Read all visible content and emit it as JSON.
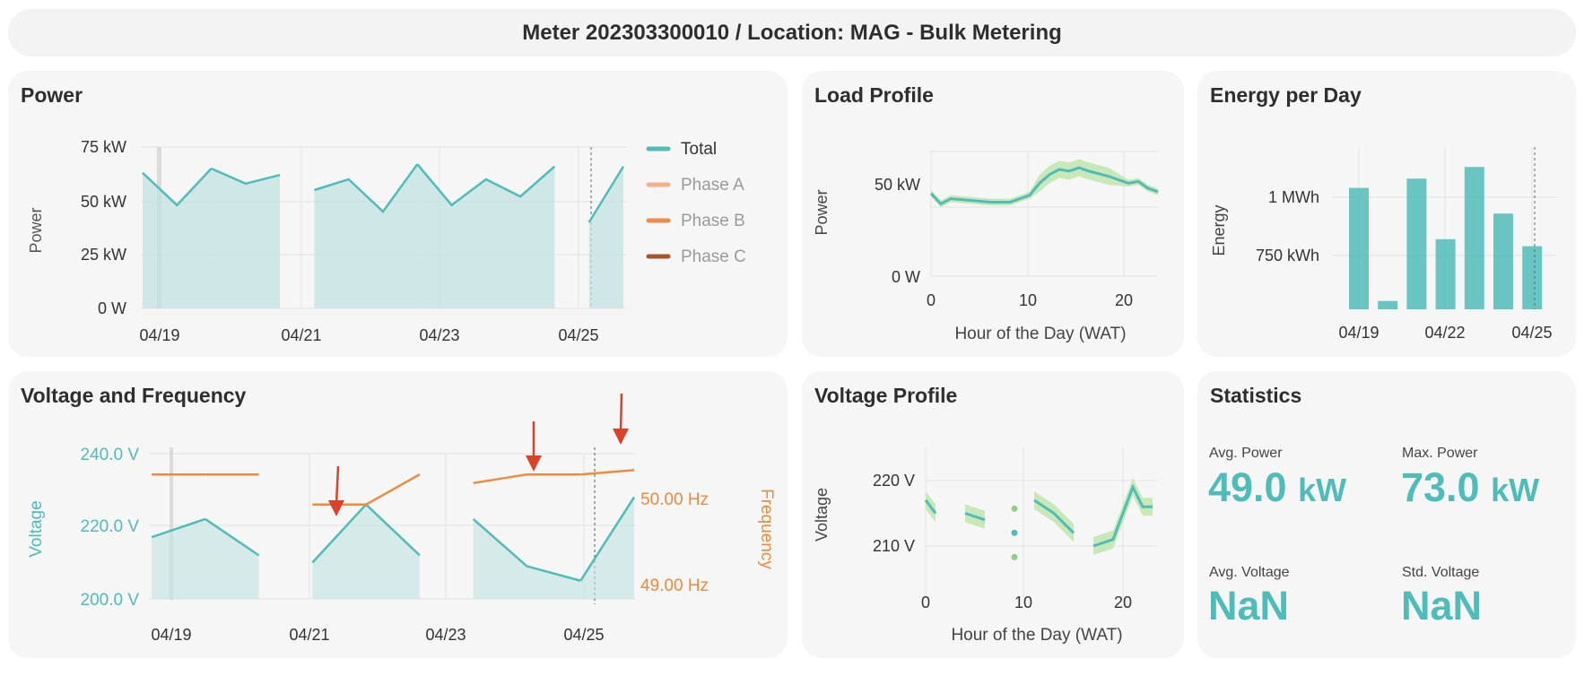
{
  "header": {
    "title": "Meter 202303300010 / Location: MAG - Bulk Metering"
  },
  "colors": {
    "teal": "#4fbcb9",
    "teal_fill": "#bfe3e1",
    "orange": "#ef8a3c",
    "phase_a": "#f4b08a",
    "phase_b": "#f08a4b",
    "phase_c": "#a9532b",
    "green_band": "#c9e8b8",
    "arrow": "#d9432b"
  },
  "power": {
    "title": "Power",
    "ylabel": "Power",
    "yticks": [
      "75 kW",
      "50 kW",
      "25 kW",
      "0 W"
    ],
    "xticks": [
      "04/19",
      "04/21",
      "04/23",
      "04/25"
    ],
    "legend": [
      "Total",
      "Phase A",
      "Phase B",
      "Phase C"
    ]
  },
  "load_profile": {
    "title": "Load Profile",
    "ylabel": "Power",
    "yticks": [
      "50 kW",
      "0 W"
    ],
    "xticks": [
      "0",
      "10",
      "20"
    ],
    "xlabel": "Hour of the Day (WAT)"
  },
  "energy": {
    "title": "Energy per Day",
    "ylabel": "Energy",
    "yticks": [
      "1 MWh",
      "750 kWh"
    ],
    "xticks": [
      "04/19",
      "04/22",
      "04/25"
    ]
  },
  "voltage_freq": {
    "title": "Voltage and Frequency",
    "ylabel": "Voltage",
    "y2label": "Frequency",
    "yticks": [
      "240.0 V",
      "220.0 V",
      "200.0 V"
    ],
    "y2ticks": [
      "50.00 Hz",
      "49.00 Hz"
    ],
    "xticks": [
      "04/19",
      "04/21",
      "04/23",
      "04/25"
    ]
  },
  "voltage_profile": {
    "title": "Voltage Profile",
    "ylabel": "Voltage",
    "yticks": [
      "220 V",
      "210 V"
    ],
    "xticks": [
      "0",
      "10",
      "20"
    ],
    "xlabel": "Hour of the Day (WAT)"
  },
  "statistics": {
    "title": "Statistics",
    "avg_power_label": "Avg. Power",
    "avg_power_value": "49.0",
    "avg_power_unit": "kW",
    "max_power_label": "Max. Power",
    "max_power_value": "73.0",
    "max_power_unit": "kW",
    "avg_voltage_label": "Avg. Voltage",
    "avg_voltage_value": "NaN",
    "std_voltage_label": "Std. Voltage",
    "std_voltage_value": "NaN"
  },
  "chart_data": [
    {
      "type": "area",
      "title": "Power",
      "ylabel": "Power",
      "ylim": [
        0,
        75
      ],
      "x": [
        "04/18 18:00",
        "04/19 00:00",
        "04/19 12:00",
        "04/20 00:00",
        "04/20 12:00",
        "04/21 00:00",
        "04/21 12:00",
        "04/22 00:00",
        "04/22 12:00",
        "04/23 00:00",
        "04/23 12:00",
        "04/24 00:00",
        "04/24 12:00",
        "04/25 00:00",
        "04/25 12:00"
      ],
      "series": [
        {
          "name": "Total",
          "values": [
            63,
            48,
            65,
            58,
            62,
            55,
            60,
            45,
            67,
            48,
            60,
            52,
            66,
            40,
            66
          ]
        }
      ]
    },
    {
      "type": "line",
      "title": "Load Profile",
      "xlabel": "Hour of the Day (WAT)",
      "ylabel": "Power",
      "x": [
        0,
        1,
        2,
        4,
        6,
        8,
        10,
        11,
        12,
        13,
        14,
        15,
        16,
        18,
        20,
        21,
        22,
        23
      ],
      "series": [
        {
          "values": [
            48,
            42,
            45,
            44,
            43,
            43,
            47,
            54,
            59,
            62,
            61,
            63,
            61,
            58,
            54,
            55,
            51,
            49
          ]
        }
      ],
      "ylim": [
        -5,
        75
      ]
    },
    {
      "type": "bar",
      "title": "Energy per Day",
      "ylabel": "Energy",
      "categories": [
        "04/19",
        "04/20",
        "04/21",
        "04/22",
        "04/23",
        "04/24",
        "04/25"
      ],
      "values": [
        1040,
        555,
        1080,
        820,
        1130,
        930,
        790
      ],
      "ylim": [
        520,
        1200
      ]
    },
    {
      "type": "line",
      "title": "Voltage and Frequency",
      "ylabel": "Voltage",
      "y2label": "Frequency",
      "ylim": [
        198,
        243
      ],
      "y2lim": [
        48.8,
        50.6
      ],
      "x": [
        "04/18 20:00",
        "04/19 12:00",
        "04/20 06:00",
        "04/21 06:00",
        "04/22 00:00",
        "04/22 12:00",
        "04/23 06:00",
        "04/24 00:00",
        "04/24 18:00",
        "04/25 12:00"
      ],
      "series": [
        {
          "name": "Voltage",
          "values": [
            217,
            222,
            212,
            210,
            226,
            212,
            222,
            209,
            205,
            228
          ]
        },
        {
          "name": "Frequency",
          "values": [
            50.3,
            50.3,
            50.3,
            49.95,
            49.95,
            50.3,
            50.2,
            50.3,
            50.3,
            50.35
          ]
        }
      ]
    },
    {
      "type": "line",
      "title": "Voltage Profile",
      "xlabel": "Hour of the Day (WAT)",
      "ylabel": "Voltage",
      "x": [
        0,
        1,
        4,
        6,
        9,
        11,
        13,
        15,
        17,
        19,
        21,
        22,
        23
      ],
      "series": [
        {
          "values": [
            217,
            215,
            215,
            214,
            212,
            217,
            215,
            212,
            210,
            211,
            219,
            216,
            216
          ]
        }
      ],
      "ylim": [
        204,
        224
      ]
    }
  ]
}
